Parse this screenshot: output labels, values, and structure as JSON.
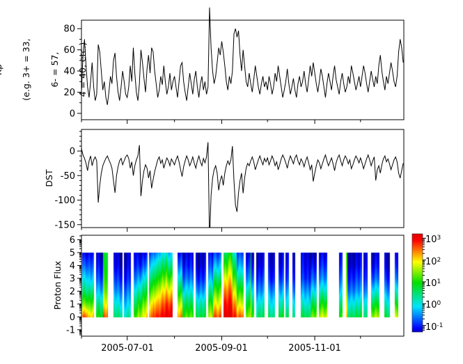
{
  "figure": {
    "background": "#ffffff",
    "line_color": "#000000"
  },
  "panels": {
    "kp": {
      "ylabel_lines": [
        "Kp",
        "(e.g. 3+ = 33,",
        "6- = 57,",
        "4 = 40, etc.)"
      ]
    },
    "dst": {
      "ylabel": "DST"
    },
    "flux": {
      "ylabel": "Proton Flux"
    }
  },
  "xaxis": {
    "tick_labels": [
      "2005-07-01",
      "2005-09-01",
      "2005-11-01"
    ],
    "start_date": "2005-06-01",
    "major_days": [
      30,
      92,
      153
    ],
    "minor_days": [
      0,
      61,
      122,
      183
    ],
    "domain_days": [
      0,
      211.4
    ]
  },
  "colorbar": {
    "ticks": [
      {
        "base": "10",
        "exp": "3",
        "v": 3
      },
      {
        "base": "10",
        "exp": "2",
        "v": 2
      },
      {
        "base": "10",
        "exp": "1",
        "v": 1
      },
      {
        "base": "10",
        "exp": "0",
        "v": 0
      },
      {
        "base": "10",
        "exp": "-1",
        "v": -1
      }
    ],
    "vmin": -1.3,
    "vmax": 3.2,
    "colormap": "jet",
    "jet_stops": [
      [
        0.0,
        0,
        0,
        128
      ],
      [
        0.08,
        0,
        0,
        255
      ],
      [
        0.29,
        0,
        229,
        255
      ],
      [
        0.52,
        0,
        224,
        0
      ],
      [
        0.72,
        255,
        255,
        0
      ],
      [
        0.93,
        255,
        0,
        0
      ],
      [
        1.0,
        224,
        0,
        0
      ]
    ]
  },
  "chart_data": [
    {
      "type": "line",
      "title": "Kp index",
      "ylabel": "Kp (e.g. 3+ = 33, 6- = 57, 4 = 40, etc.)",
      "x_start": "2005-06-01",
      "x_step_days": 1,
      "ylim": [
        -6,
        88
      ],
      "yticks": [
        0,
        20,
        40,
        60,
        80
      ],
      "ytick_minor_step": 10,
      "color": "#000000",
      "clip": false,
      "values": [
        20,
        55,
        70,
        45,
        25,
        15,
        30,
        48,
        25,
        12,
        18,
        65,
        58,
        40,
        22,
        30,
        15,
        8,
        20,
        35,
        28,
        50,
        57,
        35,
        20,
        12,
        25,
        40,
        30,
        18,
        15,
        25,
        45,
        30,
        62,
        38,
        20,
        12,
        28,
        60,
        48,
        33,
        20,
        42,
        55,
        38,
        62,
        58,
        40,
        28,
        15,
        22,
        35,
        27,
        45,
        30,
        18,
        25,
        38,
        22,
        30,
        35,
        25,
        15,
        30,
        45,
        48,
        30,
        20,
        12,
        25,
        38,
        28,
        18,
        32,
        40,
        25,
        15,
        28,
        35,
        22,
        30,
        18,
        25,
        100,
        62,
        40,
        28,
        35,
        48,
        62,
        55,
        68,
        58,
        45,
        30,
        22,
        35,
        28,
        40,
        75,
        80,
        72,
        78,
        55,
        40,
        60,
        45,
        30,
        25,
        38,
        28,
        20,
        32,
        45,
        35,
        25,
        18,
        28,
        35,
        25,
        30,
        22,
        35,
        28,
        18,
        25,
        38,
        30,
        45,
        35,
        25,
        15,
        22,
        30,
        42,
        28,
        18,
        25,
        33,
        22,
        15,
        28,
        35,
        25,
        30,
        40,
        28,
        20,
        32,
        45,
        35,
        48,
        38,
        28,
        20,
        30,
        42,
        35,
        25,
        15,
        28,
        38,
        30,
        22,
        35,
        45,
        32,
        25,
        18,
        30,
        38,
        28,
        20,
        25,
        35,
        28,
        45,
        38,
        30,
        22,
        28,
        35,
        25,
        35,
        45,
        38,
        28,
        20,
        30,
        40,
        32,
        25,
        35,
        28,
        45,
        55,
        40,
        30,
        22,
        35,
        28,
        38,
        48,
        40,
        30,
        25,
        35,
        58,
        70,
        62,
        48
      ]
    },
    {
      "type": "line",
      "title": "DST index",
      "ylabel": "DST",
      "x_start": "2005-06-01",
      "x_step_days": 1,
      "ylim": [
        -156,
        44
      ],
      "yticks": [
        0,
        -50,
        -100,
        -150
      ],
      "ytick_minor_step": 10,
      "color": "#000000",
      "clip": true,
      "values": [
        5,
        -8,
        -15,
        -25,
        -40,
        -20,
        -10,
        -30,
        -18,
        -12,
        -20,
        -105,
        -70,
        -45,
        -30,
        -22,
        -15,
        -10,
        -18,
        -25,
        -35,
        -60,
        -85,
        -50,
        -32,
        -20,
        -15,
        -28,
        -20,
        -12,
        -8,
        -15,
        -35,
        -22,
        -50,
        -30,
        -18,
        -10,
        12,
        -92,
        -60,
        -40,
        -28,
        -35,
        -55,
        -40,
        -76,
        -58,
        -42,
        -30,
        -18,
        -12,
        -25,
        -18,
        -35,
        -24,
        -14,
        -20,
        -30,
        -16,
        -22,
        -28,
        -18,
        -10,
        -22,
        -38,
        -52,
        -32,
        -20,
        -10,
        -18,
        -30,
        -22,
        -12,
        -25,
        -35,
        -20,
        -10,
        -22,
        -30,
        -15,
        -24,
        -12,
        18,
        -184,
        -90,
        -55,
        -38,
        -30,
        -45,
        -80,
        -60,
        -50,
        -70,
        -45,
        -30,
        -20,
        -28,
        -18,
        10,
        -60,
        -110,
        -124,
        -85,
        -60,
        -45,
        -86,
        -55,
        -35,
        -25,
        -30,
        -20,
        -12,
        -22,
        -38,
        -28,
        -18,
        -10,
        -20,
        -28,
        -15,
        -22,
        -14,
        -28,
        -20,
        -10,
        -18,
        -30,
        -22,
        -38,
        -28,
        -16,
        -8,
        -15,
        -24,
        -35,
        -20,
        -10,
        -18,
        -26,
        -14,
        -8,
        -20,
        -28,
        -16,
        -22,
        -32,
        -20,
        -12,
        -24,
        -38,
        -28,
        -62,
        -45,
        -30,
        -18,
        -24,
        -36,
        -26,
        -16,
        -8,
        -20,
        -30,
        -22,
        -14,
        -26,
        -40,
        -24,
        -14,
        -8,
        -20,
        -30,
        -18,
        -10,
        -16,
        -26,
        -18,
        -36,
        -28,
        -18,
        -10,
        -16,
        -24,
        -14,
        -24,
        -36,
        -26,
        -16,
        -8,
        -18,
        -30,
        -20,
        -12,
        -60,
        -38,
        -30,
        -45,
        -28,
        -16,
        -10,
        -22,
        -16,
        -26,
        -38,
        -28,
        -18,
        -12,
        -22,
        -45,
        -55,
        -40,
        -25
      ]
    },
    {
      "type": "heatmap",
      "title": "Proton Flux spectrogram",
      "ylabel": "Proton Flux",
      "ylim": [
        -1.5,
        6.35
      ],
      "yticks": [
        -1,
        0,
        1,
        2,
        3,
        4,
        5,
        6
      ],
      "ytick_minor": "log",
      "value_scale": "log10_flux",
      "vmin": -1.5,
      "vmax": 3.25,
      "data_y_range": [
        0,
        5
      ],
      "stripes_note": "each stripe = [start_day, end_day, log10 flux at y = 0,1,2,3,4,5]; gaps between stripes are missing data (white)",
      "stripes": [
        [
          0.5,
          4,
          [
            2.7,
            1.5,
            0.6,
            0.0,
            -0.6,
            -1.1
          ]
        ],
        [
          4,
          8.2,
          [
            2.1,
            1.2,
            0.4,
            -0.3,
            -0.8,
            -1.2
          ]
        ],
        [
          9.6,
          14,
          [
            1.0,
            0.4,
            -0.3,
            -0.8,
            -1.1,
            -1.3
          ]
        ],
        [
          14,
          17.4,
          [
            2.7,
            2.0,
            1.5,
            1.2,
            1.0,
            0.9
          ]
        ],
        [
          21,
          27,
          [
            0.5,
            0.0,
            -0.5,
            -0.9,
            -1.2,
            -1.3
          ]
        ],
        [
          27.9,
          32.4,
          [
            0.3,
            -0.2,
            -0.6,
            -1.0,
            -1.2,
            -1.3
          ]
        ],
        [
          34.2,
          37,
          [
            1.2,
            0.6,
            0.0,
            -0.6,
            -1.0,
            -1.2
          ]
        ],
        [
          37,
          40,
          [
            1.7,
            1.1,
            0.4,
            -0.3,
            -0.9,
            -1.2
          ]
        ],
        [
          40,
          43.4,
          [
            2.1,
            1.5,
            0.8,
            0.1,
            -0.6,
            -1.1
          ]
        ],
        [
          44.3,
          47,
          [
            2.4,
            1.8,
            1.1,
            0.4,
            -0.3,
            -0.9
          ]
        ],
        [
          47,
          50,
          [
            2.8,
            2.2,
            1.5,
            0.8,
            0.1,
            -0.6
          ]
        ],
        [
          50,
          53,
          [
            3.0,
            2.5,
            1.9,
            1.2,
            0.5,
            -0.2
          ]
        ],
        [
          53,
          56,
          [
            3.1,
            2.7,
            2.1,
            1.4,
            0.7,
            0.0
          ]
        ],
        [
          56,
          59.8,
          [
            3.1,
            2.6,
            1.9,
            1.1,
            0.3,
            -0.4
          ]
        ],
        [
          63,
          66.2,
          [
            2.5,
            1.8,
            1.0,
            0.2,
            -0.5,
            -1.0
          ]
        ],
        [
          66.2,
          73.5,
          [
            1.2,
            0.6,
            -0.1,
            -0.7,
            -1.1,
            -1.3
          ]
        ],
        [
          74.9,
          81.7,
          [
            0.8,
            0.3,
            -0.4,
            -0.9,
            -1.2,
            -1.3
          ]
        ],
        [
          83.1,
          86.3,
          [
            1.6,
            1.0,
            0.3,
            -0.4,
            -0.9,
            -1.2
          ]
        ],
        [
          86.3,
          91.8,
          [
            2.7,
            2.0,
            1.3,
            0.6,
            -0.2,
            -0.8
          ]
        ],
        [
          93.2,
          96,
          [
            3.1,
            2.8,
            2.3,
            1.7,
            1.0,
            0.4
          ]
        ],
        [
          96,
          99,
          [
            3.2,
            2.9,
            2.5,
            2.0,
            1.4,
            0.8
          ]
        ],
        [
          99,
          101.8,
          [
            2.9,
            2.4,
            1.8,
            1.2,
            0.6,
            0.0
          ]
        ],
        [
          101.8,
          106.4,
          [
            2.6,
            1.8,
            1.1,
            0.4,
            -0.3,
            -0.8
          ]
        ],
        [
          107.8,
          110.8,
          [
            1.4,
            0.8,
            0.1,
            -0.6,
            -1.0,
            -1.3
          ]
        ],
        [
          110.8,
          111.6,
          [
            2.2,
            1.8,
            1.5,
            1.3,
            1.2,
            1.1
          ]
        ],
        [
          111.6,
          113.2,
          [
            1.3,
            0.7,
            0.0,
            -0.6,
            -1.0,
            -1.3
          ]
        ],
        [
          114.6,
          120.1,
          [
            0.6,
            0.1,
            -0.5,
            -0.9,
            -1.2,
            -1.3
          ]
        ],
        [
          122.4,
          127,
          [
            0.5,
            0.0,
            -0.5,
            -1.0,
            -1.2,
            -1.3
          ]
        ],
        [
          129.2,
          132.9,
          [
            0.8,
            0.2,
            -0.4,
            -0.9,
            -1.2,
            -1.3
          ]
        ],
        [
          133.8,
          136.1,
          [
            0.6,
            0.0,
            -0.5,
            -1.0,
            -1.2,
            -1.3
          ]
        ],
        [
          138.4,
          140.2,
          [
            0.5,
            0.0,
            -0.6,
            -1.0,
            -1.2,
            -1.3
          ]
        ],
        [
          143.8,
          150,
          [
            0.6,
            0.0,
            -0.5,
            -1.0,
            -1.2,
            -1.3
          ]
        ],
        [
          150,
          154.3,
          [
            1.5,
            0.8,
            0.0,
            -0.6,
            -1.0,
            -1.3
          ]
        ],
        [
          155.7,
          161.2,
          [
            1.7,
            0.9,
            0.1,
            -0.6,
            -1.0,
            -1.3
          ]
        ],
        [
          168.9,
          171.2,
          [
            1.0,
            0.4,
            -0.3,
            -0.8,
            -1.1,
            -1.3
          ]
        ],
        [
          173.5,
          174.3,
          [
            2.0,
            1.7,
            1.4,
            1.2,
            1.1,
            1.0
          ]
        ],
        [
          174.3,
          184,
          [
            0.7,
            0.1,
            -0.5,
            -0.9,
            -1.2,
            -1.3
          ]
        ],
        [
          184.8,
          187.7,
          [
            0.5,
            0.0,
            -0.6,
            -1.0,
            -1.2,
            -1.3
          ]
        ],
        [
          190,
          195.4,
          [
            1.6,
            0.8,
            0.0,
            -0.7,
            -1.1,
            -1.3
          ]
        ],
        [
          198.6,
          202.3,
          [
            0.8,
            0.2,
            -0.4,
            -0.9,
            -1.2,
            -1.3
          ]
        ],
        [
          205.5,
          207.8,
          [
            1.7,
            0.9,
            0.0,
            -0.7,
            -1.1,
            -1.3
          ]
        ]
      ]
    }
  ]
}
